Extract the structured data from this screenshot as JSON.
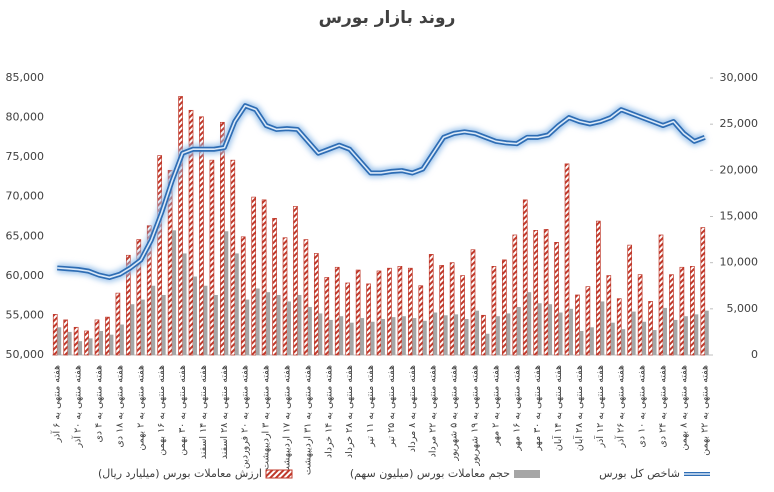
{
  "chart_data": {
    "type": "combo",
    "title": "روند بازار بورس",
    "categories": [
      "هفته منتهی به ۶ آذر",
      null,
      "هفته منتهی به ۲۰ آذر",
      null,
      "هفته منتهی به ۴ دی",
      null,
      "هفته منتهی به ۱۸ دی",
      null,
      "هفته منتهی به ۲ بهمن",
      null,
      "هفته منتهی به ۱۶ بهمن",
      null,
      "هفته منتهی به ۳۰ بهمن",
      null,
      "هفته منتهی به ۱۴ اسفند",
      null,
      "هفته منتهی به ۲۸ اسفند",
      null,
      "هفته منتهی به ۲۰ فروردین",
      null,
      "هفته منتهی به ۳ اردیبهشت",
      null,
      "هفته منتهی به ۱۷ اردیبهشت",
      null,
      "هفته منتهی به ۳۱ اردیبهشت",
      null,
      "هفته منتهی به ۱۴ خرداد",
      null,
      "هفته منتهی به ۲۸ خرداد",
      null,
      "هفته منتهی به ۱۱ تیر",
      null,
      "هفته منتهی به ۲۵ تیر",
      null,
      "هفته منتهی به ۸ مرداد",
      null,
      "هفته منتهی به ۲۲ مرداد",
      null,
      "هفته منتهی به ۵ شهریور",
      null,
      "هفته منتهی به ۱۹ شهریور",
      null,
      "هفته منتهی به ۲ مهر",
      null,
      "هفته منتهی به ۱۶ مهر",
      null,
      "هفته منتهی به ۳۰ مهر",
      null,
      "هفته منتهی به ۱۴ آبان",
      null,
      "هفته منتهی به ۲۸ آبان",
      null,
      "هفته منتهی به ۱۲ آذر",
      null,
      "هفته منتهی به ۲۶ آذر",
      null,
      "هفته منتهی به ۱۰ دی",
      null,
      "هفته منتهی به ۲۴ دی",
      null,
      "هفته منتهی به ۸ بهمن",
      null,
      "هفته منتهی به ۲۲ بهمن"
    ],
    "series": [
      {
        "name": "ارزش معاملات بورس (میلیارد ریال)",
        "type": "bar",
        "axis": "y2",
        "color": "#c0392b",
        "hatch": true,
        "values": [
          4400,
          3800,
          3000,
          2600,
          3800,
          4100,
          6700,
          10800,
          12500,
          14000,
          21600,
          20000,
          28000,
          26500,
          25800,
          21100,
          25200,
          21100,
          12800,
          17100,
          16800,
          14800,
          12700,
          16100,
          12500,
          11000,
          8400,
          9500,
          7800,
          9200,
          7700,
          9100,
          9400,
          9600,
          9400,
          7500,
          10900,
          9700,
          10000,
          8600,
          11400,
          4300,
          9600,
          10300,
          13000,
          16800,
          13500,
          13600,
          12200,
          20700,
          6500,
          7400,
          14500,
          8600,
          6100,
          11900,
          8700,
          5800,
          13000,
          8700,
          9500,
          9600,
          13800
        ]
      },
      {
        "name": "حجم معاملات بورس (میلیون سهم)",
        "type": "bar",
        "axis": "y2",
        "color": "#a6a6a6",
        "values": [
          3000,
          2500,
          1500,
          1800,
          2600,
          2200,
          3300,
          5500,
          6000,
          7500,
          6500,
          13500,
          11000,
          8500,
          7500,
          6500,
          13400,
          11000,
          6000,
          7200,
          6800,
          6500,
          5800,
          6500,
          5200,
          4500,
          3800,
          4200,
          3500,
          4000,
          3600,
          3900,
          4100,
          4200,
          4000,
          3700,
          4600,
          4300,
          4400,
          3900,
          4800,
          2300,
          4200,
          4500,
          5200,
          6800,
          5600,
          5500,
          4600,
          5000,
          2600,
          3000,
          5800,
          3500,
          2800,
          4700,
          3600,
          2700,
          5100,
          3800,
          4200,
          4400,
          4800
        ]
      },
      {
        "name": "شاخص کل بورس",
        "type": "line",
        "axis": "y",
        "color": "#2e6db4",
        "values": [
          61000,
          60900,
          60800,
          60600,
          60100,
          59800,
          60200,
          61000,
          62000,
          64500,
          68000,
          72000,
          75500,
          76000,
          76000,
          76000,
          76200,
          79500,
          81500,
          81000,
          79000,
          78500,
          78600,
          78500,
          77000,
          75500,
          76000,
          76500,
          76000,
          74500,
          73000,
          73000,
          73200,
          73300,
          73000,
          73500,
          75500,
          77500,
          78000,
          78200,
          78000,
          77500,
          77000,
          76800,
          76700,
          77500,
          77500,
          77800,
          79000,
          80000,
          79500,
          79200,
          79500,
          80000,
          81000,
          80500,
          80000,
          79500,
          79000,
          79500,
          78000,
          77000,
          77500
        ]
      }
    ],
    "ylim": [
      50000,
      85000
    ],
    "yticks": [
      {
        "value": 50000,
        "label": "50,000"
      },
      {
        "value": 55000,
        "label": "55,000"
      },
      {
        "value": 60000,
        "label": "60,000"
      },
      {
        "value": 65000,
        "label": "65,000"
      },
      {
        "value": 70000,
        "label": "70,000"
      },
      {
        "value": 75000,
        "label": "75,000"
      },
      {
        "value": 80000,
        "label": "80,000"
      },
      {
        "value": 85000,
        "label": "85,000"
      }
    ],
    "y2lim": [
      0,
      30000
    ],
    "y2ticks": [
      0,
      {
        "value": 5000,
        "label": "5,000"
      },
      {
        "value": 10000,
        "label": "10,000"
      },
      {
        "value": 15000,
        "label": "15,000"
      },
      {
        "value": 20000,
        "label": "20,000"
      },
      {
        "value": 25000,
        "label": "25,000"
      },
      {
        "value": 30000,
        "label": "30,000"
      }
    ],
    "grid": false
  }
}
